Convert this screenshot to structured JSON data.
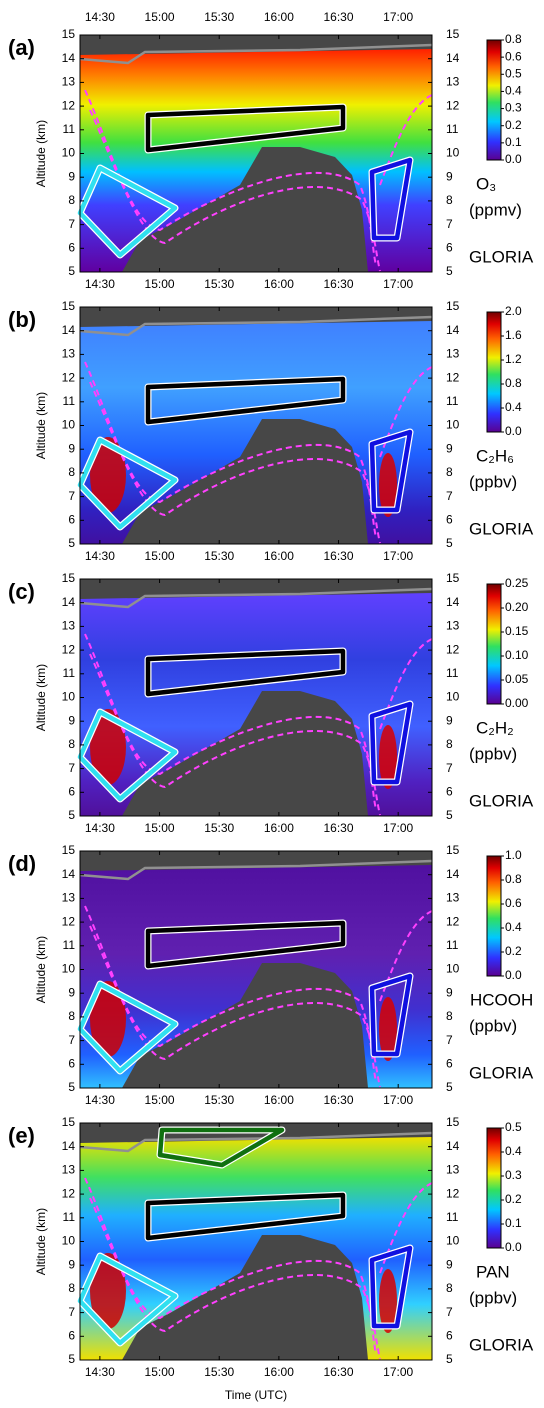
{
  "chart_data": [
    {
      "type": "heatmap",
      "panel_label": "(a)",
      "ylabel": "Altitude (km)",
      "ylim": [
        5,
        15
      ],
      "yticks": [
        5,
        6,
        7,
        8,
        9,
        10,
        11,
        12,
        13,
        14,
        15
      ],
      "xlim": [
        "14:20",
        "17:17"
      ],
      "xticks": [
        "14:30",
        "15:00",
        "15:30",
        "16:00",
        "16:30",
        "17:00"
      ],
      "top_xticks": true,
      "colorbar_ticks": [
        {
          "value": 0,
          "label": "0.0"
        },
        {
          "value": 0.1,
          "label": "0.1"
        },
        {
          "value": 0.2,
          "label": "0.2"
        },
        {
          "value": 0.3,
          "label": "0.3"
        },
        {
          "value": 0.4,
          "label": "0.4"
        },
        {
          "value": 0.5,
          "label": "0.5"
        },
        {
          "value": 0.6,
          "label": "0.6"
        },
        {
          "value": 0.8,
          "label": "0.8"
        }
      ],
      "colorbar_label": "O₃",
      "colorbar_units": "(ppmv)",
      "instrument": "GLORIA"
    },
    {
      "type": "heatmap",
      "panel_label": "(b)",
      "ylabel": "Altitude (km)",
      "ylim": [
        5,
        15
      ],
      "yticks": [
        5,
        6,
        7,
        8,
        9,
        10,
        11,
        12,
        13,
        14,
        15
      ],
      "xlim": [
        "14:20",
        "17:17"
      ],
      "xticks": [
        "14:30",
        "15:00",
        "15:30",
        "16:00",
        "16:30",
        "17:00"
      ],
      "colorbar_ticks": [
        {
          "value": 0,
          "label": "0.0"
        },
        {
          "value": 0.4,
          "label": "0.4"
        },
        {
          "value": 0.8,
          "label": "0.8"
        },
        {
          "value": 1.2,
          "label": "1.2"
        },
        {
          "value": 1.6,
          "label": "1.6"
        },
        {
          "value": 2,
          "label": "2.0"
        }
      ],
      "colorbar_label": "C₂H₆",
      "colorbar_units": "(ppbv)",
      "instrument": "GLORIA"
    },
    {
      "type": "heatmap",
      "panel_label": "(c)",
      "ylabel": "Altitude (km)",
      "ylim": [
        5,
        15
      ],
      "yticks": [
        5,
        6,
        7,
        8,
        9,
        10,
        11,
        12,
        13,
        14,
        15
      ],
      "xlim": [
        "14:20",
        "17:17"
      ],
      "xticks": [
        "14:30",
        "15:00",
        "15:30",
        "16:00",
        "16:30",
        "17:00"
      ],
      "colorbar_ticks": [
        {
          "value": 0,
          "label": "0.00"
        },
        {
          "value": 0.05,
          "label": "0.05"
        },
        {
          "value": 0.1,
          "label": "0.10"
        },
        {
          "value": 0.15,
          "label": "0.15"
        },
        {
          "value": 0.2,
          "label": "0.20"
        },
        {
          "value": 0.25,
          "label": "0.25"
        }
      ],
      "colorbar_label": "C₂H₂",
      "colorbar_units": "(ppbv)",
      "instrument": "GLORIA"
    },
    {
      "type": "heatmap",
      "panel_label": "(d)",
      "ylabel": "Altitude (km)",
      "ylim": [
        5,
        15
      ],
      "yticks": [
        5,
        6,
        7,
        8,
        9,
        10,
        11,
        12,
        13,
        14,
        15
      ],
      "xlim": [
        "14:20",
        "17:17"
      ],
      "xticks": [
        "14:30",
        "15:00",
        "15:30",
        "16:00",
        "16:30",
        "17:00"
      ],
      "colorbar_ticks": [
        {
          "value": 0,
          "label": "0.0"
        },
        {
          "value": 0.2,
          "label": "0.2"
        },
        {
          "value": 0.4,
          "label": "0.4"
        },
        {
          "value": 0.6,
          "label": "0.6"
        },
        {
          "value": 0.8,
          "label": "0.8"
        },
        {
          "value": 1,
          "label": "1.0"
        }
      ],
      "colorbar_label": "HCOOH",
      "colorbar_units": "(ppbv)",
      "instrument": "GLORIA"
    },
    {
      "type": "heatmap",
      "panel_label": "(e)",
      "ylabel": "Altitude (km)",
      "ylim": [
        5,
        15
      ],
      "yticks": [
        5,
        6,
        7,
        8,
        9,
        10,
        11,
        12,
        13,
        14,
        15
      ],
      "xlim": [
        "14:20",
        "17:17"
      ],
      "xticks": [
        "14:30",
        "15:00",
        "15:30",
        "16:00",
        "16:30",
        "17:00"
      ],
      "xlabel": "Time (UTC)",
      "colorbar_ticks": [
        {
          "value": 0,
          "label": "0.0"
        },
        {
          "value": 0.1,
          "label": "0.1"
        },
        {
          "value": 0.2,
          "label": "0.2"
        },
        {
          "value": 0.3,
          "label": "0.3"
        },
        {
          "value": 0.4,
          "label": "0.4"
        },
        {
          "value": 0.5,
          "label": "0.5"
        }
      ],
      "colorbar_label": "PAN",
      "colorbar_units": "(ppbv)",
      "instrument": "GLORIA"
    }
  ]
}
